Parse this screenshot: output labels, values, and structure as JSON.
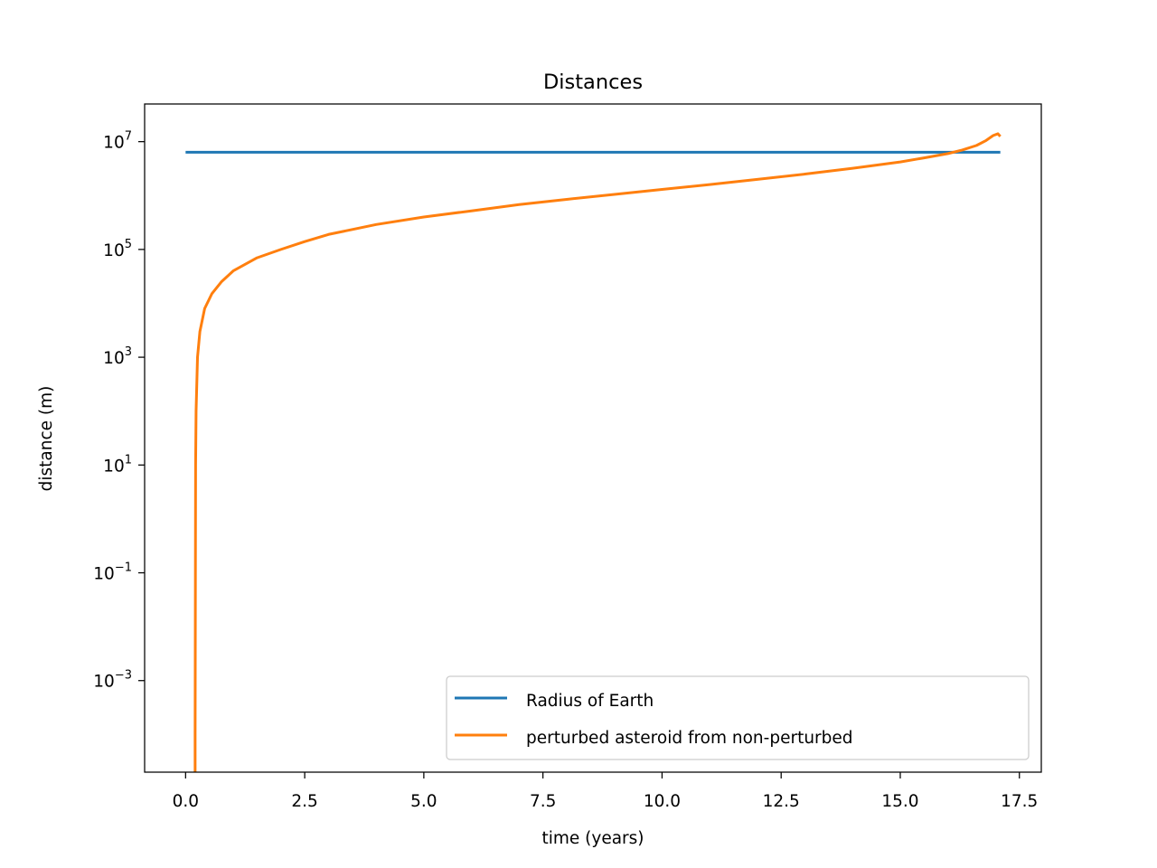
{
  "chart_data": {
    "type": "line",
    "title": "Distances",
    "xlabel": "time (years)",
    "ylabel": "distance (m)",
    "xscale": "linear",
    "yscale": "log",
    "xlim": [
      -0.86,
      17.96
    ],
    "ylim": [
      2e-05,
      50000000
    ],
    "xticks": [
      0.0,
      2.5,
      5.0,
      7.5,
      10.0,
      12.5,
      15.0,
      17.5
    ],
    "xtick_labels": [
      "0.0",
      "2.5",
      "5.0",
      "7.5",
      "10.0",
      "12.5",
      "15.0",
      "17.5"
    ],
    "yticks": [
      {
        "value": 10000000,
        "base": "10",
        "exp": "7"
      },
      {
        "value": 100000,
        "base": "10",
        "exp": "5"
      },
      {
        "value": 1000,
        "base": "10",
        "exp": "3"
      },
      {
        "value": 10,
        "base": "10",
        "exp": "1"
      },
      {
        "value": 0.1,
        "base": "10",
        "exp": "−1"
      },
      {
        "value": 0.001,
        "base": "10",
        "exp": "−3"
      }
    ],
    "grid": false,
    "legend_position": "lower-right",
    "series": [
      {
        "name": "Radius of Earth",
        "color": "#1f77b4",
        "x": [
          0.0,
          17.1
        ],
        "y": [
          6371000,
          6371000
        ]
      },
      {
        "name": "perturbed asteroid from non-perturbed",
        "color": "#ff7f0e",
        "x": [
          0.2,
          0.2,
          0.21,
          0.22,
          0.25,
          0.3,
          0.4,
          0.55,
          0.75,
          1.0,
          1.5,
          2.0,
          2.5,
          3.0,
          4.0,
          5.0,
          6.0,
          7.0,
          8.0,
          9.0,
          10.0,
          11.0,
          12.0,
          13.0,
          14.0,
          15.0,
          15.5,
          16.0,
          16.3,
          16.6,
          16.8,
          16.95,
          17.05,
          17.1
        ],
        "y": [
          2e-05,
          0.0001,
          10,
          100,
          1000,
          3000,
          8000,
          15000,
          25000,
          40000,
          70000,
          100000,
          140000,
          190000,
          290000,
          400000,
          520000,
          680000,
          850000,
          1050000,
          1300000,
          1600000,
          2000000,
          2500000,
          3200000,
          4200000,
          5000000,
          6000000,
          7000000,
          8500000,
          10500000,
          13000000,
          14000000,
          12500000
        ]
      }
    ]
  }
}
